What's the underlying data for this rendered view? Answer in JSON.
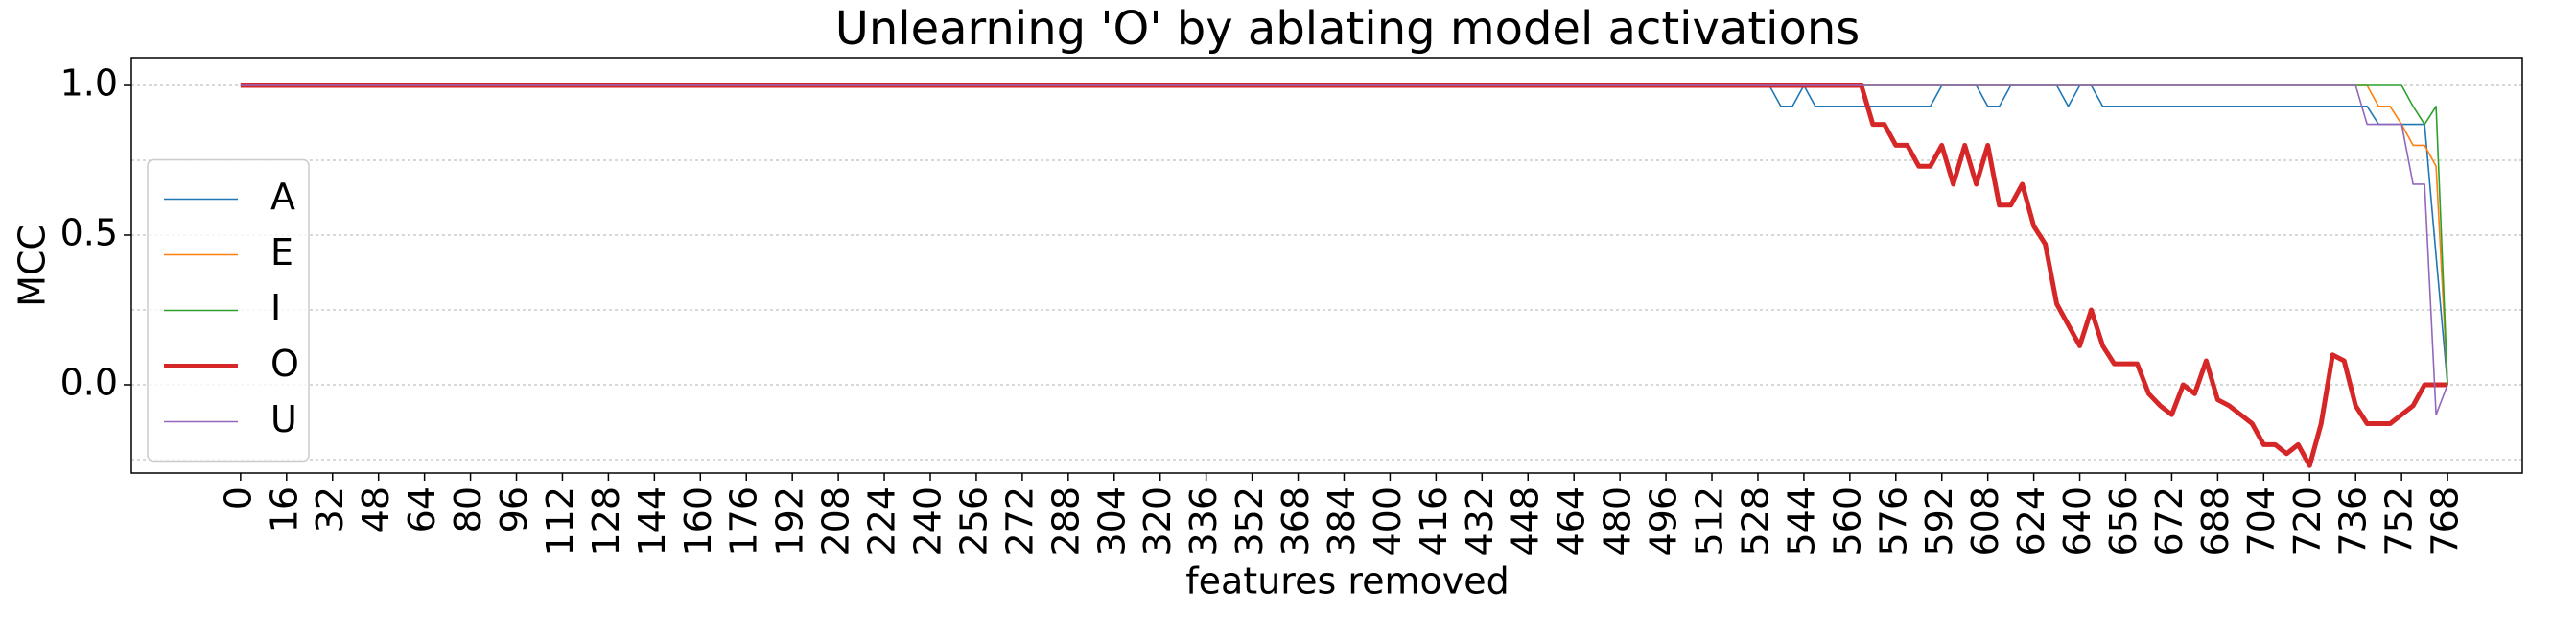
{
  "chart_data": {
    "type": "line",
    "title": "Unlearning 'O' by ablating model activations",
    "xlabel": "features removed",
    "ylabel": "MCC",
    "x": [
      0,
      528,
      532,
      536,
      540,
      544,
      548,
      552,
      556,
      560,
      564,
      568,
      572,
      576,
      580,
      584,
      588,
      592,
      596,
      600,
      604,
      608,
      612,
      616,
      620,
      624,
      628,
      632,
      636,
      640,
      644,
      648,
      652,
      656,
      660,
      664,
      668,
      672,
      676,
      680,
      684,
      688,
      692,
      696,
      700,
      704,
      708,
      712,
      716,
      720,
      724,
      728,
      732,
      736,
      740,
      744,
      748,
      752,
      756,
      760,
      764,
      768
    ],
    "series": [
      {
        "name": "A",
        "color": "#1f77b4",
        "linewidth": 1.6,
        "values": [
          1,
          1,
          1,
          0.93,
          0.93,
          1,
          0.93,
          0.93,
          0.93,
          0.93,
          0.93,
          0.93,
          0.93,
          0.93,
          0.93,
          0.93,
          0.93,
          1,
          1,
          1,
          1,
          0.93,
          0.93,
          1,
          1,
          1,
          1,
          1,
          0.93,
          1,
          1,
          0.93,
          0.93,
          0.93,
          0.93,
          0.93,
          0.93,
          0.93,
          0.93,
          0.93,
          0.93,
          0.93,
          0.93,
          0.93,
          0.93,
          0.93,
          0.93,
          0.93,
          0.93,
          0.93,
          0.93,
          0.93,
          0.93,
          0.93,
          0.93,
          0.87,
          0.87,
          0.87,
          0.87,
          0.87,
          0.43,
          0
        ]
      },
      {
        "name": "E",
        "color": "#ff7f0e",
        "linewidth": 1.6,
        "values": [
          1,
          1,
          1,
          1,
          1,
          1,
          1,
          1,
          1,
          1,
          1,
          1,
          1,
          1,
          1,
          1,
          1,
          1,
          1,
          1,
          1,
          1,
          1,
          1,
          1,
          1,
          1,
          1,
          1,
          1,
          1,
          1,
          1,
          1,
          1,
          1,
          1,
          1,
          1,
          1,
          1,
          1,
          1,
          1,
          1,
          1,
          1,
          1,
          1,
          1,
          1,
          1,
          1,
          1,
          1,
          0.93,
          0.93,
          0.87,
          0.8,
          0.8,
          0.73,
          0
        ]
      },
      {
        "name": "I",
        "color": "#2ca02c",
        "linewidth": 1.6,
        "values": [
          1,
          1,
          1,
          1,
          1,
          1,
          1,
          1,
          1,
          1,
          1,
          1,
          1,
          1,
          1,
          1,
          1,
          1,
          1,
          1,
          1,
          1,
          1,
          1,
          1,
          1,
          1,
          1,
          1,
          1,
          1,
          1,
          1,
          1,
          1,
          1,
          1,
          1,
          1,
          1,
          1,
          1,
          1,
          1,
          1,
          1,
          1,
          1,
          1,
          1,
          1,
          1,
          1,
          1,
          1,
          1,
          1,
          1,
          0.93,
          0.87,
          0.93,
          0
        ]
      },
      {
        "name": "O",
        "color": "#d62728",
        "linewidth": 5,
        "values": [
          1,
          1,
          1,
          1,
          1,
          1,
          1,
          1,
          1,
          1,
          1,
          0.87,
          0.87,
          0.8,
          0.8,
          0.73,
          0.73,
          0.8,
          0.67,
          0.8,
          0.67,
          0.8,
          0.6,
          0.6,
          0.67,
          0.53,
          0.47,
          0.27,
          0.2,
          0.13,
          0.25,
          0.13,
          0.07,
          0.07,
          0.07,
          -0.03,
          -0.07,
          -0.1,
          0.0,
          -0.03,
          0.08,
          -0.05,
          -0.07,
          -0.1,
          -0.13,
          -0.2,
          -0.2,
          -0.23,
          -0.2,
          -0.27,
          -0.13,
          0.1,
          0.08,
          -0.07,
          -0.13,
          -0.13,
          -0.13,
          -0.1,
          -0.07,
          0.0,
          0.0,
          0.0
        ]
      },
      {
        "name": "U",
        "color": "#9467bd",
        "linewidth": 1.6,
        "values": [
          1,
          1,
          1,
          1,
          1,
          1,
          1,
          1,
          1,
          1,
          1,
          1,
          1,
          1,
          1,
          1,
          1,
          1,
          1,
          1,
          1,
          1,
          1,
          1,
          1,
          1,
          1,
          1,
          1,
          1,
          1,
          1,
          1,
          1,
          1,
          1,
          1,
          1,
          1,
          1,
          1,
          1,
          1,
          1,
          1,
          1,
          1,
          1,
          1,
          1,
          1,
          1,
          1,
          1,
          0.87,
          0.87,
          0.87,
          0.87,
          0.67,
          0.67,
          -0.1,
          0
        ]
      }
    ],
    "xlim": [
      -38,
      794
    ],
    "ylim": [
      -0.295,
      1.093
    ],
    "xticks": [
      0,
      16,
      32,
      48,
      64,
      80,
      96,
      112,
      128,
      144,
      160,
      176,
      192,
      208,
      224,
      240,
      256,
      272,
      288,
      304,
      320,
      336,
      352,
      368,
      384,
      400,
      416,
      432,
      448,
      464,
      480,
      496,
      512,
      528,
      544,
      560,
      576,
      592,
      608,
      624,
      640,
      656,
      672,
      688,
      704,
      720,
      736,
      752,
      768
    ],
    "yticks": [
      {
        "value": 0,
        "label": "0.0"
      },
      0.5,
      {
        "value": 1,
        "label": "1.0"
      }
    ],
    "yminorticks": [
      -0.25,
      0.25,
      0.75
    ],
    "grid": true,
    "legend": "center left"
  }
}
